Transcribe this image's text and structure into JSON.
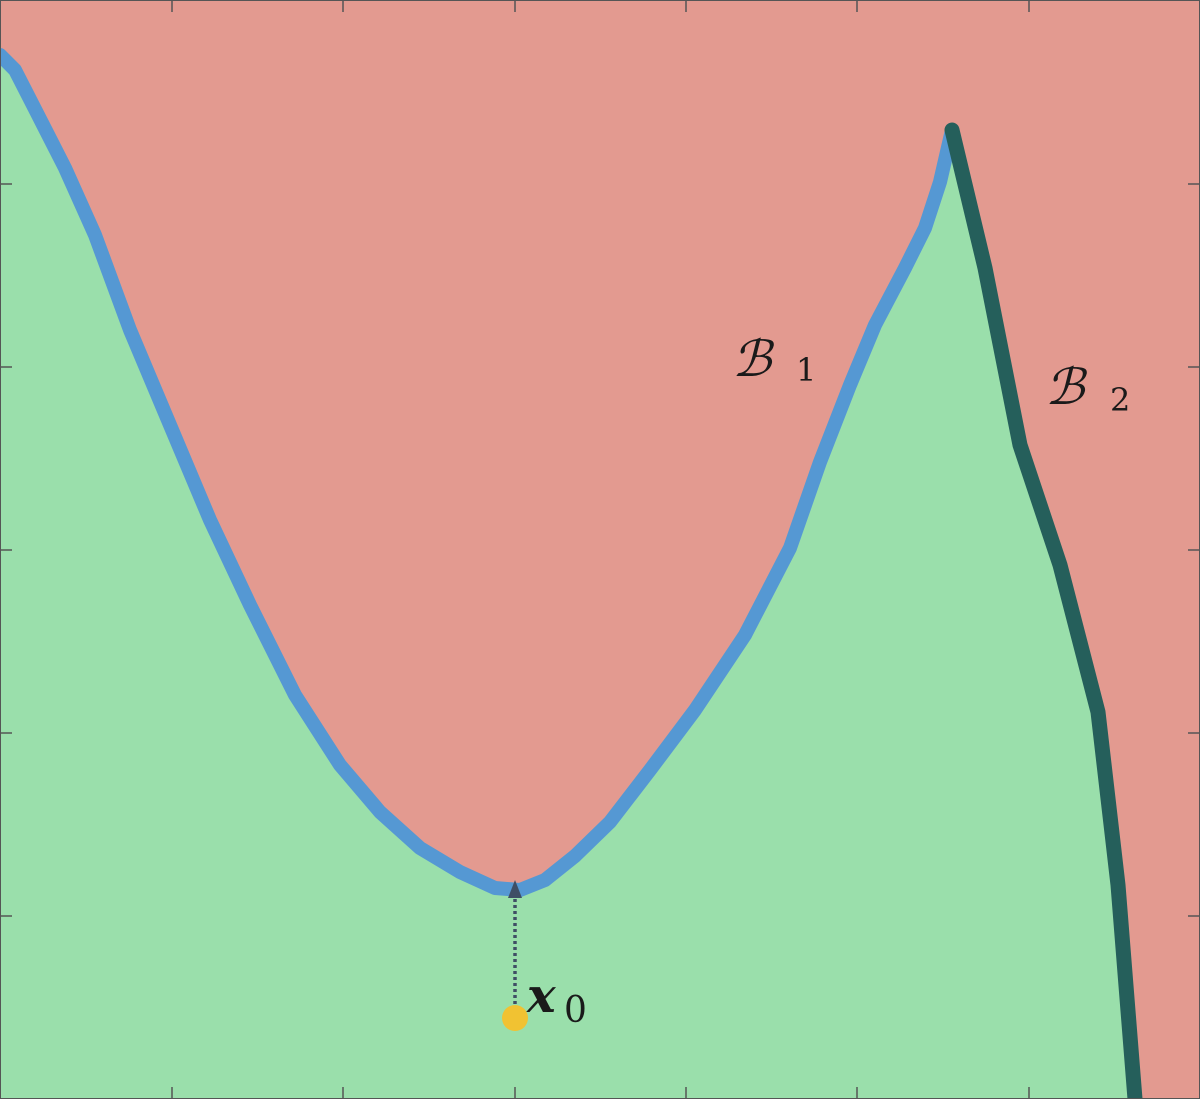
{
  "colors": {
    "region_top": "#e39a90",
    "region_bottom": "#9adfab",
    "boundary_1": "#5598d3",
    "boundary_2": "#255f5b",
    "point": "#f1c232",
    "arrow": "#3f4e65",
    "axis": "#555555"
  },
  "labels": {
    "b1": {
      "symbol": "ℬ",
      "subscript": "1"
    },
    "b2": {
      "symbol": "ℬ",
      "subscript": "2"
    },
    "x0": {
      "symbol": "x",
      "subscript": "0"
    }
  }
}
